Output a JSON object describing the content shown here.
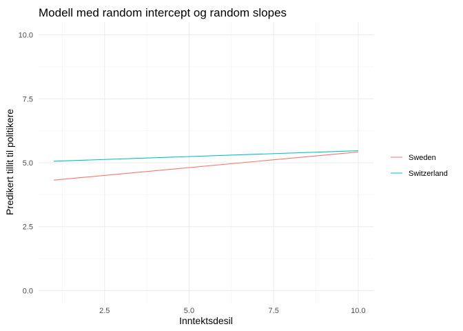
{
  "chart_data": {
    "type": "line",
    "title": "Modell med random intercept og random slopes",
    "xlabel": "Inntektsdesil",
    "ylabel": "Predikert tillit til politikere",
    "xlim": [
      0.55,
      10.45
    ],
    "ylim": [
      -0.5,
      10.5
    ],
    "x_ticks": [
      2.5,
      5.0,
      7.5,
      10.0
    ],
    "x_tick_labels": [
      "2.5",
      "5.0",
      "7.5",
      "10.0"
    ],
    "y_ticks": [
      0.0,
      2.5,
      5.0,
      7.5,
      10.0
    ],
    "y_tick_labels": [
      "0.0",
      "2.5",
      "5.0",
      "7.5",
      "10.0"
    ],
    "x_minor": [
      1.25,
      3.75,
      6.25,
      8.75
    ],
    "y_minor": [
      1.25,
      3.75,
      6.25,
      8.75
    ],
    "grid": true,
    "legend_position": "right",
    "series": [
      {
        "name": "Sweden",
        "color": "#F8766D",
        "x": [
          1,
          10
        ],
        "y": [
          4.32,
          5.42
        ]
      },
      {
        "name": "Switzerland",
        "color": "#00BFC4",
        "x": [
          1,
          10
        ],
        "y": [
          5.06,
          5.47
        ]
      }
    ]
  }
}
